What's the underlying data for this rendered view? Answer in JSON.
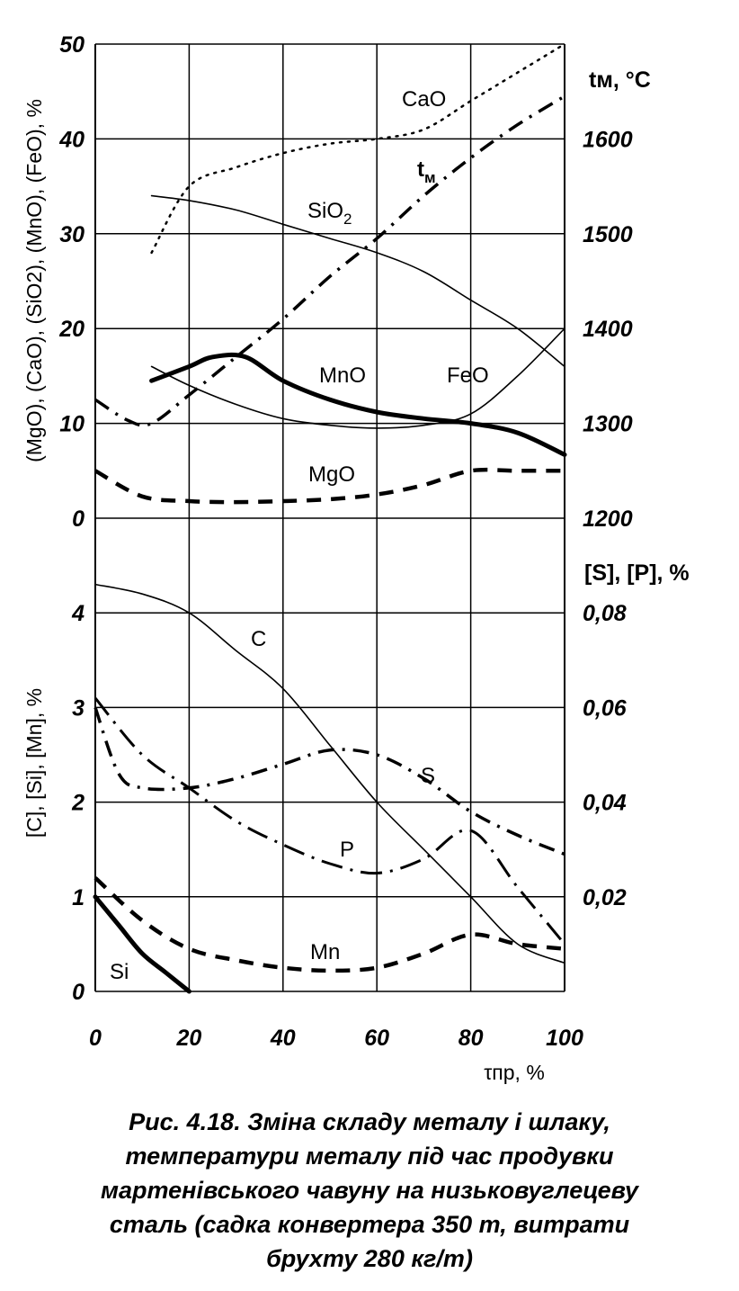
{
  "caption": {
    "line1": "Рис. 4.18. Зміна складу металу і шлаку,",
    "line2": "температури металу під час продувки",
    "line3": "мартенівського чавуну на низьковуглецеву",
    "line4": "сталь (садка конвертера 350 т, витрати",
    "line5": "брухту 280 кг/т)"
  },
  "chart_data": [
    {
      "type": "line",
      "panel": "slag",
      "ylabel": "(MgO), (CaO), (SiO2), (MnO), (FeO), %",
      "ylim": [
        0,
        50
      ],
      "yticks": [
        "0",
        "10",
        "20",
        "30",
        "40",
        "50"
      ],
      "y2label": "tм, °C",
      "y2lim": [
        1200,
        1700
      ],
      "y2ticks": [
        "1200",
        "1300",
        "1400",
        "1500",
        "1600"
      ],
      "grid": true,
      "series": [
        {
          "name": "CaO",
          "style": "dotted",
          "x": [
            12,
            20,
            30,
            40,
            50,
            60,
            70,
            80,
            90,
            100
          ],
          "y": [
            28,
            35,
            37,
            38.5,
            39.5,
            40,
            41,
            44,
            47,
            50
          ]
        },
        {
          "name": "SiO2",
          "style": "thin",
          "x": [
            12,
            20,
            30,
            40,
            50,
            60,
            70,
            80,
            90,
            100
          ],
          "y": [
            34,
            33.5,
            32.5,
            31,
            29.5,
            28,
            26,
            23,
            20,
            16
          ]
        },
        {
          "name": "MnO",
          "style": "thick",
          "x": [
            12,
            20,
            25,
            32,
            40,
            50,
            60,
            70,
            80,
            90,
            100
          ],
          "y": [
            14.5,
            16,
            17,
            17,
            14.5,
            12.5,
            11.2,
            10.5,
            10,
            9,
            6.7
          ]
        },
        {
          "name": "FeO",
          "style": "thin",
          "x": [
            12,
            20,
            30,
            40,
            50,
            60,
            70,
            80,
            90,
            100
          ],
          "y": [
            16,
            14,
            12,
            10.5,
            9.8,
            9.5,
            9.8,
            11,
            15,
            20
          ]
        },
        {
          "name": "MgO",
          "style": "dashed",
          "x": [
            0,
            10,
            20,
            30,
            40,
            50,
            60,
            70,
            80,
            90,
            100
          ],
          "y": [
            5,
            2.3,
            1.8,
            1.7,
            1.8,
            2,
            2.5,
            3.5,
            5,
            5,
            5
          ]
        },
        {
          "name": "tм",
          "style": "dash-dot",
          "axis": "right",
          "x": [
            0,
            7,
            12,
            20,
            30,
            40,
            50,
            60,
            70,
            80,
            90,
            100
          ],
          "y": [
            1325,
            1303,
            1300,
            1330,
            1370,
            1410,
            1455,
            1495,
            1540,
            1580,
            1615,
            1645
          ]
        }
      ]
    },
    {
      "type": "line",
      "panel": "metal",
      "xlabel": "τпр, %",
      "xlim": [
        0,
        100
      ],
      "xticks": [
        "0",
        "20",
        "40",
        "60",
        "80",
        "100"
      ],
      "ylabel": "[C], [Si], [Mn], %",
      "ylim": [
        0,
        5
      ],
      "yticks": [
        "0",
        "1",
        "2",
        "3",
        "4"
      ],
      "y2label": "[S], [P], %",
      "y2lim": [
        0,
        0.1
      ],
      "y2ticks": [
        "0,02",
        "0,04",
        "0,06",
        "0,08"
      ],
      "grid": true,
      "series": [
        {
          "name": "C",
          "style": "thin",
          "x": [
            0,
            10,
            20,
            30,
            40,
            50,
            60,
            70,
            80,
            90,
            100
          ],
          "y": [
            4.3,
            4.2,
            4.0,
            3.6,
            3.2,
            2.6,
            2.0,
            1.5,
            1.0,
            0.5,
            0.3
          ]
        },
        {
          "name": "Si",
          "style": "thick",
          "x": [
            0,
            5,
            10,
            15,
            20
          ],
          "y": [
            1.0,
            0.7,
            0.4,
            0.2,
            0.0
          ]
        },
        {
          "name": "Mn",
          "style": "dashed",
          "x": [
            0,
            10,
            20,
            30,
            40,
            50,
            60,
            70,
            80,
            90,
            100
          ],
          "y": [
            1.2,
            0.75,
            0.45,
            0.33,
            0.25,
            0.22,
            0.25,
            0.4,
            0.6,
            0.5,
            0.45
          ]
        },
        {
          "name": "S",
          "style": "dash-dot",
          "axis": "right",
          "x": [
            0,
            5,
            10,
            20,
            30,
            40,
            50,
            60,
            70,
            80,
            90,
            100
          ],
          "y": [
            0.06,
            0.046,
            0.043,
            0.043,
            0.045,
            0.048,
            0.051,
            0.05,
            0.045,
            0.038,
            0.033,
            0.029
          ]
        },
        {
          "name": "P",
          "style": "long-dash-dot",
          "axis": "right",
          "x": [
            0,
            10,
            20,
            30,
            40,
            50,
            60,
            70,
            80,
            90,
            100
          ],
          "y": [
            0.062,
            0.05,
            0.043,
            0.036,
            0.031,
            0.027,
            0.025,
            0.028,
            0.034,
            0.022,
            0.01
          ]
        }
      ]
    }
  ]
}
